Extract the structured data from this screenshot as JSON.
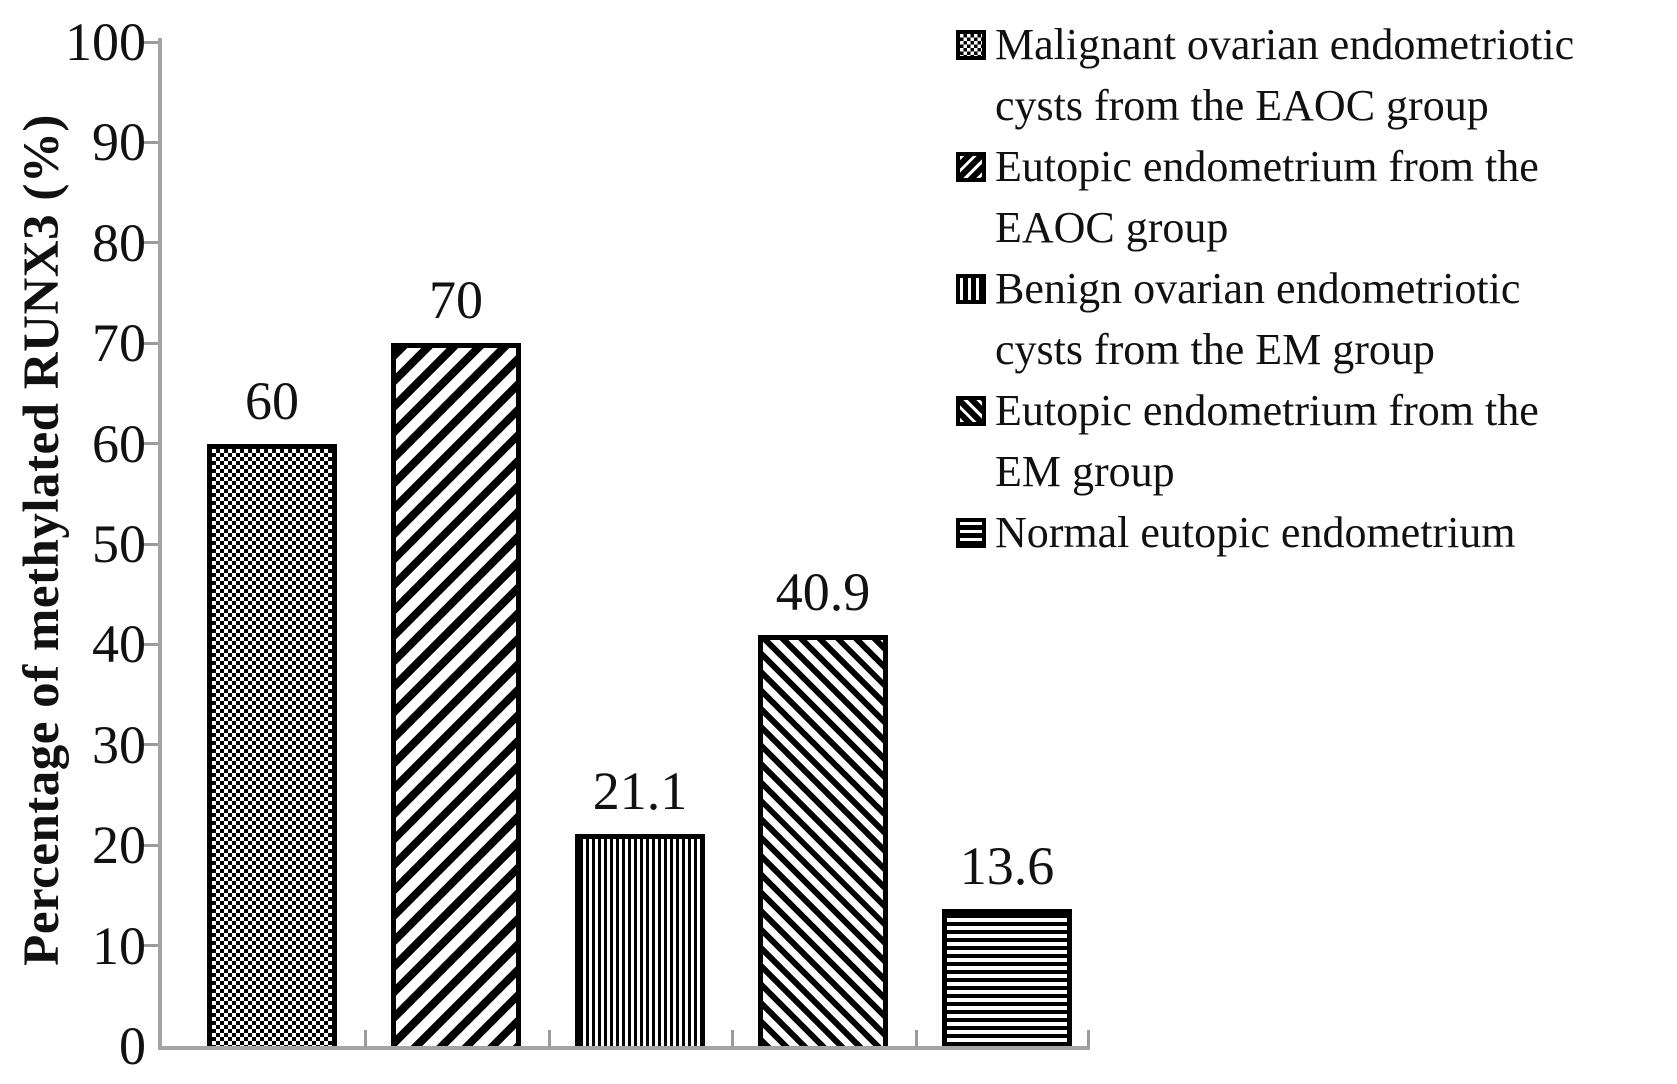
{
  "chart_data": {
    "type": "bar",
    "title": "",
    "xlabel": "",
    "ylabel": "Percentage of methylated RUNX3 (%)",
    "ylim": [
      0,
      100
    ],
    "yticks": [
      0,
      10,
      20,
      30,
      40,
      50,
      60,
      70,
      80,
      90,
      100
    ],
    "ytick_labels": [
      "0",
      "10",
      "20",
      "30",
      "40",
      "50",
      "60",
      "70",
      "80",
      "90",
      "100"
    ],
    "grid": false,
    "legend_position": "right",
    "categories": [
      "Malignant ovarian endometriotic cysts from the EAOC group",
      "Eutopic endometrium from the EAOC group",
      "Benign ovarian endometriotic cysts from the EM group",
      "Eutopic endometrium from the EM group",
      "Normal eutopic endometrium"
    ],
    "values": [
      60,
      70,
      21.1,
      40.9,
      13.6
    ],
    "value_labels": [
      "60",
      "70",
      "21.1",
      "40.9",
      "13.6"
    ],
    "bar_patterns": [
      "checker",
      "diag-forward",
      "vertical",
      "diag-back",
      "horizontal"
    ]
  },
  "legend": {
    "items": [
      {
        "pattern": "checker",
        "lines": [
          "Malignant ovarian endometriotic",
          "cysts from the EAOC group"
        ]
      },
      {
        "pattern": "diag-forward",
        "lines": [
          "Eutopic endometrium from the",
          "EAOC group"
        ]
      },
      {
        "pattern": "vertical",
        "lines": [
          "Benign ovarian endometriotic",
          "cysts from the EM group"
        ]
      },
      {
        "pattern": "diag-back",
        "lines": [
          "Eutopic endometrium from the",
          "EM group"
        ]
      },
      {
        "pattern": "horizontal",
        "lines": [
          "Normal eutopic endometrium"
        ]
      }
    ]
  },
  "colors": {
    "background": "#ffffff",
    "ink": "#111111",
    "axis": "#a4a4a4",
    "tick": "#9b9b9b",
    "bar_border": "#000000",
    "pattern_dark": "#000000",
    "pattern_light": "#ffffff"
  }
}
